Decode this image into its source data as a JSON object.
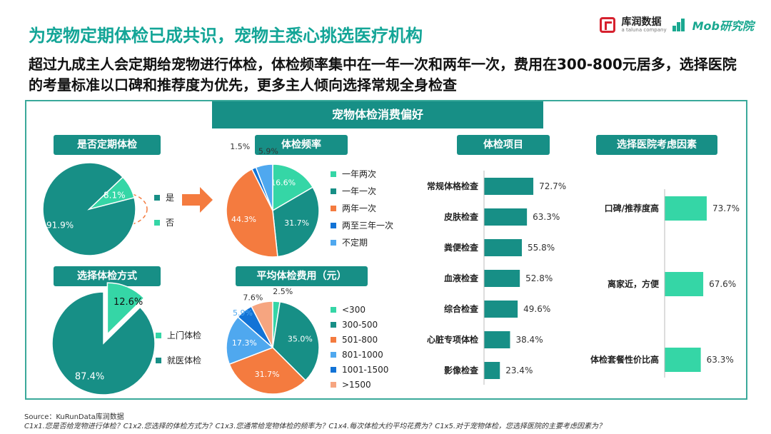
{
  "header": {
    "title": "为宠物定期体检已成共识，宠物主悉心挑选医疗机构",
    "subtitle": "超过九成主人会定期给宠物进行体检，体检频率集中在一年一次和两年一次，费用在300-800元居多，选择医院的考量标准以口碑和推荐度为优先，更多主人倾向选择常规全身检查",
    "logo1_name": "库润数据",
    "logo1_sub": "a taluna company",
    "logo2_name": "Mob研究院"
  },
  "panel_title": "宠物体检消费偏好",
  "colors": {
    "teal_dark": "#178F86",
    "teal_light": "#35D6A6",
    "orange": "#F47B3F",
    "light_blue": "#4FA8EF",
    "blue": "#1273D6",
    "peach": "#F6A580",
    "bar": "#178F86",
    "bar_light": "#35D6A6"
  },
  "chart_data": [
    {
      "id": "regular_checkup",
      "type": "pie",
      "title": "是否定期体检",
      "categories": [
        "是",
        "否"
      ],
      "values": [
        91.9,
        8.1
      ],
      "labels": [
        "91.9%",
        "8.1%"
      ],
      "colors": [
        "#178F86",
        "#35D6A6"
      ]
    },
    {
      "id": "frequency",
      "type": "pie",
      "title": "体检频率",
      "categories": [
        "一年两次",
        "一年一次",
        "两年一次",
        "两至三年一次",
        "不定期"
      ],
      "values": [
        16.6,
        31.7,
        44.3,
        1.5,
        5.9
      ],
      "labels": [
        "16.6%",
        "31.7%",
        "44.3%",
        "1.5%",
        "5.9%"
      ],
      "colors": [
        "#35D6A6",
        "#178F86",
        "#F47B3F",
        "#1273D6",
        "#4FA8EF"
      ]
    },
    {
      "id": "checkup_method",
      "type": "pie",
      "title": "选择体检方式",
      "categories": [
        "上门体检",
        "就医体检"
      ],
      "values": [
        12.6,
        87.4
      ],
      "labels": [
        "12.6%",
        "87.4%"
      ],
      "colors": [
        "#35D6A6",
        "#178F86"
      ]
    },
    {
      "id": "avg_cost",
      "type": "pie",
      "title": "平均体检费用（元）",
      "categories": [
        "<300",
        "300-500",
        "501-800",
        "801-1000",
        "1001-1500",
        ">1500"
      ],
      "values": [
        2.5,
        35.0,
        31.7,
        17.3,
        5.9,
        7.6
      ],
      "labels": [
        "2.5%",
        "35.0%",
        "31.7%",
        "17.3%",
        "5.9%",
        "7.6%"
      ],
      "colors": [
        "#35D6A6",
        "#178F86",
        "#F47B3F",
        "#4FA8EF",
        "#1273D6",
        "#F6A580"
      ]
    },
    {
      "id": "checkup_items",
      "type": "bar",
      "orientation": "horizontal",
      "title": "体检项目",
      "categories": [
        "常规体格检查",
        "皮肤检查",
        "粪便检查",
        "血液检查",
        "综合检查",
        "心脏专项体检",
        "影像检查"
      ],
      "values": [
        72.7,
        63.3,
        55.8,
        52.8,
        49.6,
        38.4,
        23.4
      ],
      "labels": [
        "72.7%",
        "63.3%",
        "55.8%",
        "52.8%",
        "49.6%",
        "38.4%",
        "23.4%"
      ],
      "color": "#178F86"
    },
    {
      "id": "hospital_factors",
      "type": "bar",
      "orientation": "horizontal",
      "title": "选择医院考虑因素",
      "categories": [
        "口碑/推荐度高",
        "离家近，方便",
        "体检套餐性价比高"
      ],
      "values": [
        73.7,
        67.6,
        63.3
      ],
      "labels": [
        "73.7%",
        "67.6%",
        "63.3%"
      ],
      "color": "#35D6A6"
    }
  ],
  "footer": {
    "source": "Source：KuRunData库润数据",
    "notes": "C1x1.您是否给宠物进行体检？C1x2.您选择的体检方式为？C1x3.您通常给宠物体检的频率为？C1x4.每次体检大约平均花费为？C1x5.对于宠物体检，您选择医院的主要考虑因素为？"
  }
}
